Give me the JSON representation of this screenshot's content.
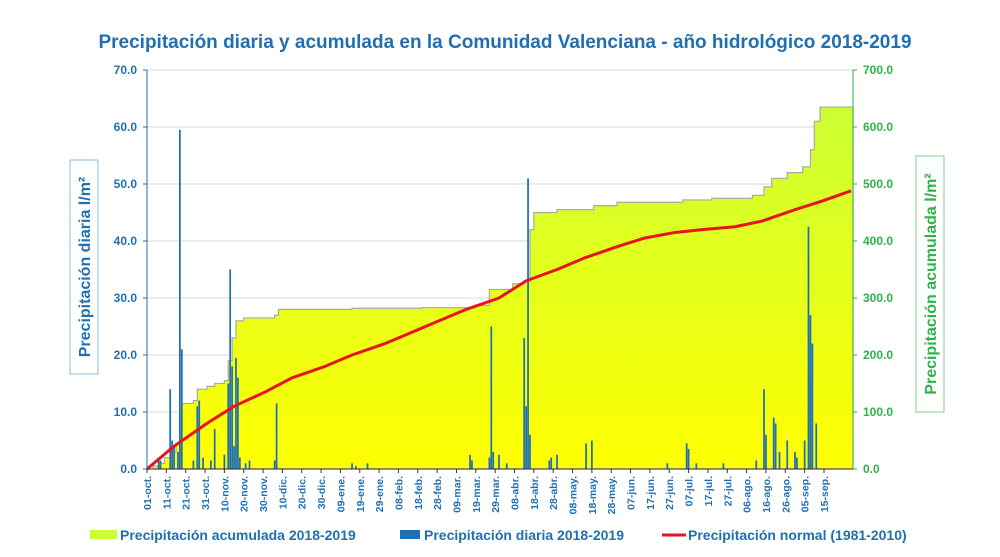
{
  "chart_data": {
    "type": "bar",
    "title": "Precipitación diaria y acumulada en la Comunidad Valenciana - año hidrológico 2018-2019",
    "ylabel_left": "Precipitación diaria l/m²",
    "ylabel_right": "Precipitación acumulada l/m²",
    "ylim_left": [
      0,
      70
    ],
    "ylim_right": [
      0,
      700
    ],
    "yticks_left": [
      "0.0",
      "10.0",
      "20.0",
      "30.0",
      "40.0",
      "50.0",
      "60.0",
      "70.0"
    ],
    "yticks_right": [
      "0.0",
      "100.0",
      "200.0",
      "300.0",
      "400.0",
      "500.0",
      "600.0",
      "700.0"
    ],
    "x_start_date": "2018-10-01",
    "xticks": [
      "01-oct.",
      "11-oct.",
      "21-oct.",
      "31-oct.",
      "10-nov.",
      "20-nov.",
      "30-nov.",
      "10-dic.",
      "20-dic.",
      "30-dic.",
      "09-ene.",
      "19-ene.",
      "29-ene.",
      "08-feb.",
      "18-feb.",
      "28-feb.",
      "09-mar.",
      "19-mar.",
      "29-mar.",
      "08-abr.",
      "18-abr.",
      "28-abr.",
      "08-may.",
      "18-may.",
      "28-may.",
      "07-jun.",
      "17-jun.",
      "27-jun.",
      "07-jul.",
      "17-jul.",
      "27-jul.",
      "06-ago.",
      "16-ago.",
      "26-ago.",
      "05-sep.",
      "15-sep."
    ],
    "grid": true,
    "legend_position": "bottom",
    "colors": {
      "acumulada": "#ccff33",
      "acumulada_gradient_bottom": "#ffff00",
      "diaria": "#1f6fb2",
      "normal": "#e8141d",
      "axis_left": "#1f6fb2",
      "axis_right": "#2eb34a",
      "grid": "#d8d8d8"
    },
    "series": [
      {
        "name": "Precipitación acumulada 2018-2019",
        "type": "area",
        "axis": "right",
        "points": [
          [
            "2018-10-01",
            0
          ],
          [
            "2018-10-04",
            5
          ],
          [
            "2018-10-07",
            10
          ],
          [
            "2018-10-10",
            20
          ],
          [
            "2018-10-13",
            30
          ],
          [
            "2018-10-16",
            45
          ],
          [
            "2018-10-18",
            105
          ],
          [
            "2018-10-19",
            115
          ],
          [
            "2018-10-25",
            120
          ],
          [
            "2018-10-27",
            140
          ],
          [
            "2018-11-01",
            145
          ],
          [
            "2018-11-05",
            150
          ],
          [
            "2018-11-10",
            155
          ],
          [
            "2018-11-12",
            190
          ],
          [
            "2018-11-14",
            230
          ],
          [
            "2018-11-16",
            260
          ],
          [
            "2018-11-20",
            265
          ],
          [
            "2018-11-30",
            265
          ],
          [
            "2018-12-06",
            270
          ],
          [
            "2018-12-08",
            280
          ],
          [
            "2019-01-15",
            282
          ],
          [
            "2019-02-20",
            283
          ],
          [
            "2019-03-20",
            287
          ],
          [
            "2019-03-27",
            315
          ],
          [
            "2019-04-08",
            325
          ],
          [
            "2019-04-14",
            330
          ],
          [
            "2019-04-17",
            420
          ],
          [
            "2019-04-19",
            450
          ],
          [
            "2019-05-01",
            455
          ],
          [
            "2019-05-20",
            462
          ],
          [
            "2019-06-01",
            468
          ],
          [
            "2019-07-05",
            472
          ],
          [
            "2019-07-20",
            475
          ],
          [
            "2019-08-10",
            480
          ],
          [
            "2019-08-16",
            495
          ],
          [
            "2019-08-20",
            510
          ],
          [
            "2019-08-28",
            520
          ],
          [
            "2019-09-05",
            530
          ],
          [
            "2019-09-09",
            560
          ],
          [
            "2019-09-11",
            610
          ],
          [
            "2019-09-14",
            635
          ],
          [
            "2019-09-30",
            635
          ]
        ]
      },
      {
        "name": "Precipitación diaria 2018-2019",
        "type": "bar",
        "axis": "left",
        "points": [
          [
            "2018-10-07",
            2.0
          ],
          [
            "2018-10-08",
            1.5
          ],
          [
            "2018-10-13",
            14.0
          ],
          [
            "2018-10-14",
            5.0
          ],
          [
            "2018-10-15",
            4.0
          ],
          [
            "2018-10-17",
            3.0
          ],
          [
            "2018-10-18",
            59.5
          ],
          [
            "2018-10-19",
            21.0
          ],
          [
            "2018-10-25",
            1.5
          ],
          [
            "2018-10-27",
            11.0
          ],
          [
            "2018-10-28",
            12.0
          ],
          [
            "2018-10-30",
            2.0
          ],
          [
            "2018-11-03",
            1.5
          ],
          [
            "2018-11-05",
            7.0
          ],
          [
            "2018-11-10",
            2.5
          ],
          [
            "2018-11-12",
            15.0
          ],
          [
            "2018-11-13",
            35.0
          ],
          [
            "2018-11-14",
            18.0
          ],
          [
            "2018-11-15",
            4.0
          ],
          [
            "2018-11-16",
            19.5
          ],
          [
            "2018-11-17",
            16.0
          ],
          [
            "2018-11-18",
            2.0
          ],
          [
            "2018-11-21",
            1.0
          ],
          [
            "2018-11-23",
            1.5
          ],
          [
            "2018-12-06",
            1.5
          ],
          [
            "2018-12-07",
            11.5
          ],
          [
            "2019-01-15",
            1.0
          ],
          [
            "2019-01-17",
            0.5
          ],
          [
            "2019-01-23",
            1.0
          ],
          [
            "2019-03-17",
            2.5
          ],
          [
            "2019-03-18",
            1.5
          ],
          [
            "2019-03-27",
            2.0
          ],
          [
            "2019-03-28",
            25.0
          ],
          [
            "2019-03-29",
            3.0
          ],
          [
            "2019-04-01",
            2.5
          ],
          [
            "2019-04-05",
            1.0
          ],
          [
            "2019-04-14",
            23.0
          ],
          [
            "2019-04-15",
            11.0
          ],
          [
            "2019-04-16",
            51.0
          ],
          [
            "2019-04-17",
            6.0
          ],
          [
            "2019-04-27",
            1.5
          ],
          [
            "2019-04-28",
            2.0
          ],
          [
            "2019-05-01",
            2.5
          ],
          [
            "2019-05-16",
            4.5
          ],
          [
            "2019-05-19",
            5.0
          ],
          [
            "2019-06-27",
            1.0
          ],
          [
            "2019-07-07",
            4.5
          ],
          [
            "2019-07-08",
            3.5
          ],
          [
            "2019-07-12",
            1.0
          ],
          [
            "2019-07-26",
            1.0
          ],
          [
            "2019-08-12",
            1.5
          ],
          [
            "2019-08-16",
            14.0
          ],
          [
            "2019-08-17",
            6.0
          ],
          [
            "2019-08-21",
            9.0
          ],
          [
            "2019-08-22",
            8.0
          ],
          [
            "2019-08-24",
            3.0
          ],
          [
            "2019-08-28",
            5.0
          ],
          [
            "2019-09-01",
            3.0
          ],
          [
            "2019-09-02",
            2.0
          ],
          [
            "2019-09-06",
            5.0
          ],
          [
            "2019-09-08",
            42.5
          ],
          [
            "2019-09-09",
            27.0
          ],
          [
            "2019-09-10",
            22.0
          ],
          [
            "2019-09-12",
            8.0
          ]
        ]
      },
      {
        "name": "Precipitación normal (1981-2010)",
        "type": "line",
        "axis": "right",
        "points": [
          [
            "2018-10-01",
            0
          ],
          [
            "2018-10-15",
            40
          ],
          [
            "2018-11-01",
            80
          ],
          [
            "2018-11-15",
            110
          ],
          [
            "2018-12-01",
            135
          ],
          [
            "2018-12-15",
            160
          ],
          [
            "2019-01-01",
            180
          ],
          [
            "2019-01-15",
            200
          ],
          [
            "2019-02-01",
            220
          ],
          [
            "2019-02-15",
            240
          ],
          [
            "2019-03-01",
            260
          ],
          [
            "2019-03-15",
            280
          ],
          [
            "2019-04-01",
            300
          ],
          [
            "2019-04-15",
            330
          ],
          [
            "2019-05-01",
            350
          ],
          [
            "2019-05-15",
            370
          ],
          [
            "2019-06-01",
            390
          ],
          [
            "2019-06-15",
            405
          ],
          [
            "2019-07-01",
            415
          ],
          [
            "2019-07-15",
            420
          ],
          [
            "2019-08-01",
            425
          ],
          [
            "2019-08-15",
            435
          ],
          [
            "2019-09-01",
            455
          ],
          [
            "2019-09-15",
            470
          ],
          [
            "2019-09-30",
            488
          ]
        ]
      }
    ]
  }
}
